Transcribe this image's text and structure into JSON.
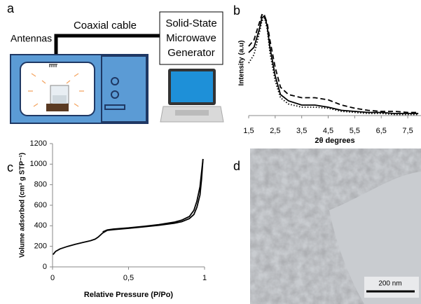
{
  "panels": [
    "a",
    "b",
    "c",
    "d"
  ],
  "diagram": {
    "antennas": "Antennas",
    "cable": "Coaxial cable",
    "generator": [
      "Solid-State",
      "Microwave",
      "Generator"
    ]
  },
  "image": {
    "scale_bar": "200 nm"
  },
  "chart_data": [
    {
      "type": "line",
      "xlabel": "2θ degrees",
      "ylabel": "Intensity (a.u)",
      "x": [
        1.5,
        1.7,
        1.9,
        2.0,
        2.1,
        2.2,
        2.3,
        2.5,
        2.7,
        3.0,
        3.5,
        4.0,
        4.5,
        5.0,
        5.5,
        6.0,
        6.5,
        7.0,
        7.5,
        7.9
      ],
      "series": [
        {
          "color": "#000000",
          "dash": "solid",
          "values": [
            0.6,
            0.65,
            0.82,
            0.93,
            0.95,
            0.85,
            0.65,
            0.38,
            0.2,
            0.14,
            0.1,
            0.1,
            0.08,
            0.05,
            0.04,
            0.03,
            0.03,
            0.02,
            0.02,
            0.02
          ]
        },
        {
          "color": "#000000",
          "dash": "dashed",
          "values": [
            0.66,
            0.72,
            0.88,
            0.96,
            0.95,
            0.88,
            0.72,
            0.46,
            0.27,
            0.2,
            0.17,
            0.17,
            0.15,
            0.1,
            0.07,
            0.05,
            0.04,
            0.04,
            0.03,
            0.03
          ]
        },
        {
          "color": "#000000",
          "dash": "dotted",
          "values": [
            0.5,
            0.58,
            0.78,
            0.9,
            0.93,
            0.82,
            0.6,
            0.33,
            0.17,
            0.11,
            0.08,
            0.08,
            0.07,
            0.04,
            0.03,
            0.02,
            0.02,
            0.01,
            0.01,
            0.01
          ]
        }
      ],
      "xlim": [
        1.5,
        8.0
      ],
      "ylim": [
        0,
        1
      ],
      "xticks": [
        {
          "value": 1.5,
          "label": "1,5"
        },
        {
          "value": 2.5,
          "label": "2,5"
        },
        {
          "value": 3.5,
          "label": "3,5"
        },
        {
          "value": 4.5,
          "label": "4,5"
        },
        {
          "value": 5.5,
          "label": "5,5"
        },
        {
          "value": 6.5,
          "label": "6,5"
        },
        {
          "value": 7.5,
          "label": "7,5"
        }
      ]
    },
    {
      "type": "line",
      "xlabel": "Relative Pressure (P/Po)",
      "ylabel": "Volume adsorbed (cm³ g STP⁻¹)",
      "series": [
        {
          "color": "#000000",
          "dash": "solid",
          "x": [
            0.003,
            0.02,
            0.05,
            0.1,
            0.15,
            0.2,
            0.25,
            0.28,
            0.3,
            0.33,
            0.36,
            0.4,
            0.5,
            0.6,
            0.7,
            0.8,
            0.85,
            0.9,
            0.93,
            0.95,
            0.97,
            0.98,
            0.99
          ],
          "values": [
            120,
            150,
            175,
            200,
            220,
            238,
            255,
            270,
            290,
            330,
            355,
            362,
            375,
            390,
            405,
            425,
            440,
            470,
            510,
            580,
            700,
            850,
            1050
          ]
        },
        {
          "color": "#000000",
          "dash": "solid",
          "x": [
            0.99,
            0.98,
            0.97,
            0.95,
            0.93,
            0.9,
            0.85,
            0.8,
            0.7,
            0.6,
            0.5,
            0.4,
            0.36,
            0.33
          ],
          "values": [
            1050,
            920,
            780,
            640,
            550,
            490,
            455,
            435,
            412,
            395,
            380,
            368,
            360,
            340
          ]
        }
      ],
      "xlim": [
        0,
        1
      ],
      "ylim": [
        0,
        1200
      ],
      "xticks": [
        0,
        {
          "value": 0.5,
          "label": "0,5"
        },
        1
      ],
      "yticks": [
        0,
        200,
        400,
        600,
        800,
        1000,
        1200
      ]
    }
  ]
}
